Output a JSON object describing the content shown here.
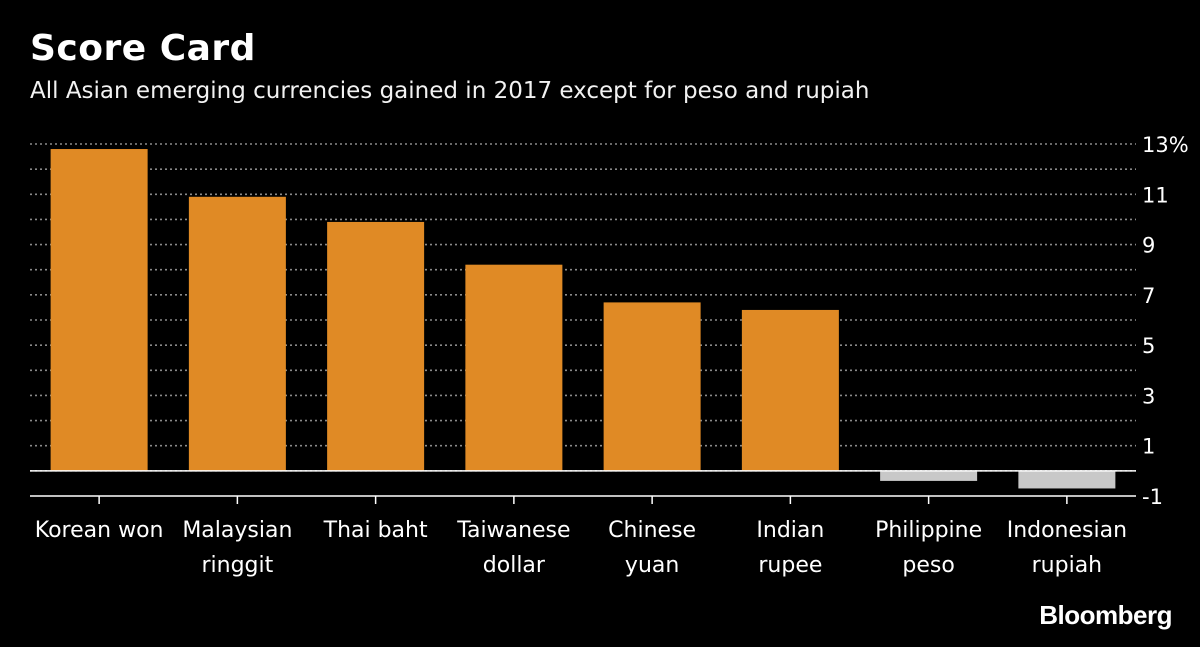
{
  "title": "Score Card",
  "subtitle": "All Asian emerging currencies gained in 2017 except for peso and rupiah",
  "brand": "Bloomberg",
  "colors": {
    "background": "#000000",
    "positive_bar": "#e08a25",
    "negative_bar": "#c8c8c8",
    "grid": "#8a8a8a",
    "text": "#ffffff"
  },
  "chart_data": {
    "type": "bar",
    "categories": [
      [
        "Korean won"
      ],
      [
        "Malaysian",
        "ringgit"
      ],
      [
        "Thai baht"
      ],
      [
        "Taiwanese",
        "dollar"
      ],
      [
        "Chinese",
        "yuan"
      ],
      [
        "Indian",
        "rupee"
      ],
      [
        "Philippine",
        "peso"
      ],
      [
        "Indonesian",
        "rupiah"
      ]
    ],
    "values": [
      12.8,
      10.9,
      9.9,
      8.2,
      6.7,
      6.4,
      -0.4,
      -0.7
    ],
    "y_ticks": [
      13,
      11,
      9,
      7,
      5,
      3,
      1,
      -1
    ],
    "y_tick_labels": [
      "13%",
      "11",
      "9",
      "7",
      "5",
      "3",
      "1",
      "-1"
    ],
    "ylim": [
      -1,
      13
    ],
    "grid": true,
    "xlabel": "",
    "ylabel": ""
  }
}
